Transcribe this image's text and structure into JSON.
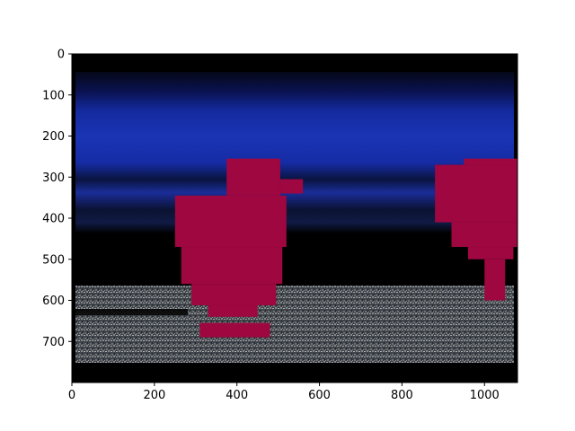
{
  "chart_data": {
    "type": "image",
    "title": "",
    "xlabel": "",
    "ylabel": "",
    "image_width": 1080,
    "image_height": 800,
    "xlim": [
      0,
      1080
    ],
    "ylim": [
      800,
      0
    ],
    "x_ticks": [
      0,
      200,
      400,
      600,
      800,
      1000
    ],
    "y_ticks": [
      0,
      100,
      200,
      300,
      400,
      500,
      600,
      700
    ],
    "grid": false,
    "mask_color": "#9e0740",
    "mask_regions": [
      {
        "x0": 250,
        "x1": 520,
        "y0": 345,
        "y1": 470
      },
      {
        "x0": 265,
        "x1": 510,
        "y0": 470,
        "y1": 560
      },
      {
        "x0": 290,
        "x1": 495,
        "y0": 560,
        "y1": 612
      },
      {
        "x0": 330,
        "x1": 450,
        "y0": 612,
        "y1": 640
      },
      {
        "x0": 375,
        "x1": 505,
        "y0": 255,
        "y1": 345
      },
      {
        "x0": 505,
        "x1": 560,
        "y0": 305,
        "y1": 340
      },
      {
        "x0": 310,
        "x1": 480,
        "y0": 655,
        "y1": 690
      },
      {
        "x0": 880,
        "x1": 1080,
        "y0": 270,
        "y1": 410
      },
      {
        "x0": 920,
        "x1": 1080,
        "y0": 410,
        "y1": 470
      },
      {
        "x0": 950,
        "x1": 1080,
        "y0": 255,
        "y1": 270
      },
      {
        "x0": 960,
        "x1": 1070,
        "y0": 470,
        "y1": 500
      },
      {
        "x0": 1000,
        "x1": 1050,
        "y0": 500,
        "y1": 600
      }
    ]
  }
}
